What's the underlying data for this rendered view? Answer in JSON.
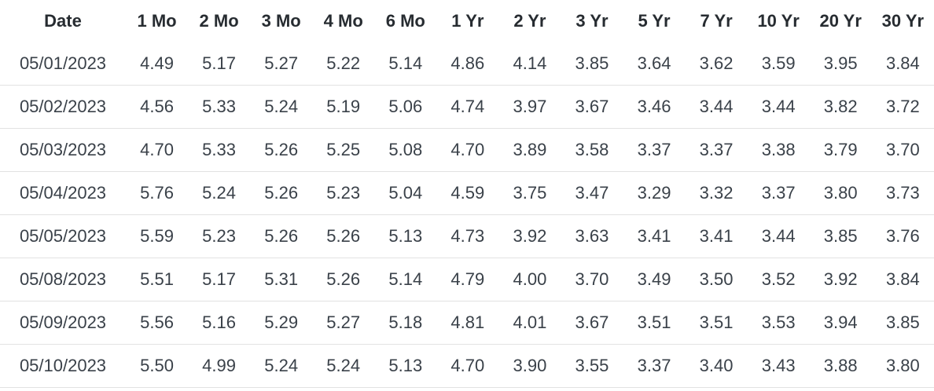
{
  "table": {
    "columns": [
      "Date",
      "1 Mo",
      "2 Mo",
      "3 Mo",
      "4 Mo",
      "6 Mo",
      "1 Yr",
      "2 Yr",
      "3 Yr",
      "5 Yr",
      "7 Yr",
      "10 Yr",
      "20 Yr",
      "30 Yr"
    ],
    "rows": [
      [
        "05/01/2023",
        "4.49",
        "5.17",
        "5.27",
        "5.22",
        "5.14",
        "4.86",
        "4.14",
        "3.85",
        "3.64",
        "3.62",
        "3.59",
        "3.95",
        "3.84"
      ],
      [
        "05/02/2023",
        "4.56",
        "5.33",
        "5.24",
        "5.19",
        "5.06",
        "4.74",
        "3.97",
        "3.67",
        "3.46",
        "3.44",
        "3.44",
        "3.82",
        "3.72"
      ],
      [
        "05/03/2023",
        "4.70",
        "5.33",
        "5.26",
        "5.25",
        "5.08",
        "4.70",
        "3.89",
        "3.58",
        "3.37",
        "3.37",
        "3.38",
        "3.79",
        "3.70"
      ],
      [
        "05/04/2023",
        "5.76",
        "5.24",
        "5.26",
        "5.23",
        "5.04",
        "4.59",
        "3.75",
        "3.47",
        "3.29",
        "3.32",
        "3.37",
        "3.80",
        "3.73"
      ],
      [
        "05/05/2023",
        "5.59",
        "5.23",
        "5.26",
        "5.26",
        "5.13",
        "4.73",
        "3.92",
        "3.63",
        "3.41",
        "3.41",
        "3.44",
        "3.85",
        "3.76"
      ],
      [
        "05/08/2023",
        "5.51",
        "5.17",
        "5.31",
        "5.26",
        "5.14",
        "4.79",
        "4.00",
        "3.70",
        "3.49",
        "3.50",
        "3.52",
        "3.92",
        "3.84"
      ],
      [
        "05/09/2023",
        "5.56",
        "5.16",
        "5.29",
        "5.27",
        "5.18",
        "4.81",
        "4.01",
        "3.67",
        "3.51",
        "3.51",
        "3.53",
        "3.94",
        "3.85"
      ],
      [
        "05/10/2023",
        "5.50",
        "4.99",
        "5.24",
        "5.24",
        "5.13",
        "4.70",
        "3.90",
        "3.55",
        "3.37",
        "3.40",
        "3.43",
        "3.88",
        "3.80"
      ]
    ]
  },
  "chart_data": {
    "type": "table",
    "title": "",
    "columns": [
      "Date",
      "1 Mo",
      "2 Mo",
      "3 Mo",
      "4 Mo",
      "6 Mo",
      "1 Yr",
      "2 Yr",
      "3 Yr",
      "5 Yr",
      "7 Yr",
      "10 Yr",
      "20 Yr",
      "30 Yr"
    ],
    "categories": [
      "05/01/2023",
      "05/02/2023",
      "05/03/2023",
      "05/04/2023",
      "05/05/2023",
      "05/08/2023",
      "05/09/2023",
      "05/10/2023"
    ],
    "series": [
      {
        "name": "1 Mo",
        "values": [
          4.49,
          4.56,
          4.7,
          5.76,
          5.59,
          5.51,
          5.56,
          5.5
        ]
      },
      {
        "name": "2 Mo",
        "values": [
          5.17,
          5.33,
          5.33,
          5.24,
          5.23,
          5.17,
          5.16,
          4.99
        ]
      },
      {
        "name": "3 Mo",
        "values": [
          5.27,
          5.24,
          5.26,
          5.26,
          5.26,
          5.31,
          5.29,
          5.24
        ]
      },
      {
        "name": "4 Mo",
        "values": [
          5.22,
          5.19,
          5.25,
          5.23,
          5.26,
          5.26,
          5.27,
          5.24
        ]
      },
      {
        "name": "6 Mo",
        "values": [
          5.14,
          5.06,
          5.08,
          5.04,
          5.13,
          5.14,
          5.18,
          5.13
        ]
      },
      {
        "name": "1 Yr",
        "values": [
          4.86,
          4.74,
          4.7,
          4.59,
          4.73,
          4.79,
          4.81,
          4.7
        ]
      },
      {
        "name": "2 Yr",
        "values": [
          4.14,
          3.97,
          3.89,
          3.75,
          3.92,
          4.0,
          4.01,
          3.9
        ]
      },
      {
        "name": "3 Yr",
        "values": [
          3.85,
          3.67,
          3.58,
          3.47,
          3.63,
          3.7,
          3.67,
          3.55
        ]
      },
      {
        "name": "5 Yr",
        "values": [
          3.64,
          3.46,
          3.37,
          3.29,
          3.41,
          3.49,
          3.51,
          3.37
        ]
      },
      {
        "name": "7 Yr",
        "values": [
          3.62,
          3.44,
          3.37,
          3.32,
          3.41,
          3.5,
          3.51,
          3.4
        ]
      },
      {
        "name": "10 Yr",
        "values": [
          3.59,
          3.44,
          3.38,
          3.37,
          3.44,
          3.52,
          3.53,
          3.43
        ]
      },
      {
        "name": "20 Yr",
        "values": [
          3.95,
          3.82,
          3.79,
          3.8,
          3.85,
          3.92,
          3.94,
          3.88
        ]
      },
      {
        "name": "30 Yr",
        "values": [
          3.84,
          3.72,
          3.7,
          3.73,
          3.76,
          3.84,
          3.85,
          3.8
        ]
      }
    ]
  },
  "colors": {
    "background": "#ffffff",
    "header_text": "#272c31",
    "cell_text": "#3a4149",
    "row_divider": "#e2e2e2"
  }
}
